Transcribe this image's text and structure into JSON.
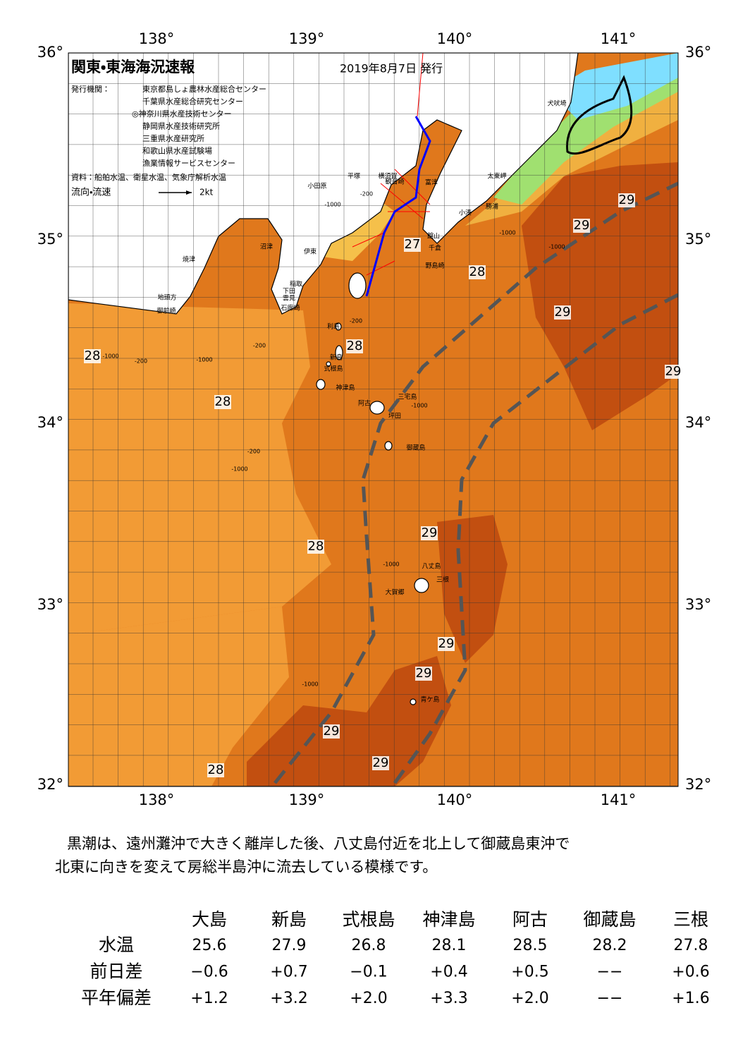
{
  "header": {
    "title": "関東・東海海況速報",
    "date": "2019年8月7日 発行"
  },
  "issuers": {
    "label": "発行機関：",
    "names": [
      "東京都島しょ農林水産総合センター",
      "千葉県水産総合研究センター",
      "◎神奈川県水産技術センター",
      "静岡県水産技術研究所",
      "三重県水産研究所",
      "和歌山県水産試験場",
      "漁業情報サービスセンター"
    ]
  },
  "source": "資料：船舶水温、衛星水温、気象庁解析水温",
  "legend": {
    "label": "流向・流速",
    "speed": "2kt"
  },
  "map": {
    "lon_labels": [
      "138°",
      "139°",
      "140°",
      "141°"
    ],
    "lat_labels": [
      "36°",
      "35°",
      "34°",
      "33°",
      "32°"
    ],
    "places": [
      "犬吠埼",
      "太東岬",
      "勝浦",
      "小湊",
      "館山",
      "千倉",
      "野島崎",
      "富津",
      "観音崎",
      "横須賀",
      "平塚",
      "小田原",
      "沼津",
      "伊東",
      "焼津",
      "稲取",
      "下田",
      "雲見",
      "石廊崎",
      "地頭方",
      "御前崎",
      "利島",
      "新島",
      "式根島",
      "神津島",
      "三宅島",
      "阿古",
      "坪田",
      "御蔵島",
      "八丈島",
      "三根",
      "大賀郷",
      "青ケ島"
    ],
    "temps": [
      "29",
      "29",
      "27",
      "28",
      "29",
      "28",
      "28",
      "29",
      "28",
      "29",
      "28",
      "29",
      "29",
      "29",
      "29",
      "28"
    ],
    "depths": [
      "-1000",
      "-200",
      "-1000",
      "-1000",
      "-200",
      "-1000",
      "-200",
      "-1000",
      "-200",
      "-1000",
      "-200",
      "-1000",
      "-1000",
      "-1000"
    ]
  },
  "description": [
    "黒潮は、遠州灘沖で大きく離岸した後、八丈島付近を北上して御蔵島東沖で",
    "北東に向きを変えて房総半島沖に流去している模様です。"
  ],
  "table": {
    "columns": [
      "大島",
      "新島",
      "式根島",
      "神津島",
      "阿古",
      "御蔵島",
      "三根"
    ],
    "rows": [
      {
        "label": "水温",
        "values": [
          "25.6",
          "27.9",
          "26.8",
          "28.1",
          "28.5",
          "28.2",
          "27.8"
        ]
      },
      {
        "label": "前日差",
        "values": [
          "−0.6",
          "+0.7",
          "−0.1",
          "+0.4",
          "+0.5",
          "−−",
          "+0.6"
        ]
      },
      {
        "label": "平年偏差",
        "values": [
          "+1.2",
          "+3.2",
          "+2.0",
          "+3.3",
          "+2.0",
          "−−",
          "+1.6"
        ]
      }
    ]
  }
}
